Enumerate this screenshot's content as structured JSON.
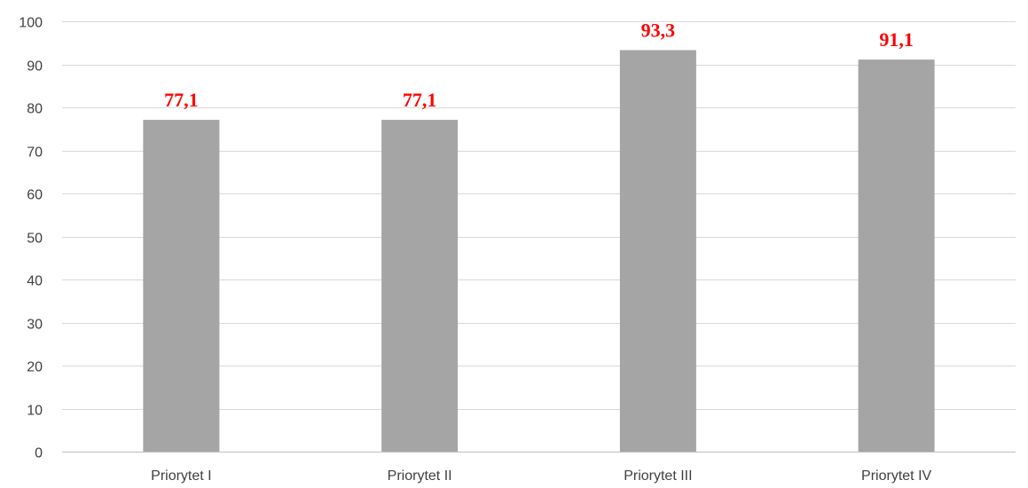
{
  "chart_data": {
    "type": "bar",
    "categories": [
      "Priorytet I",
      "Priorytet II",
      "Priorytet III",
      "Priorytet IV"
    ],
    "values": [
      77.1,
      77.1,
      93.3,
      91.1
    ],
    "data_labels": [
      "77,1",
      "77,1",
      "93,3",
      "91,1"
    ],
    "title": "",
    "xlabel": "",
    "ylabel": "",
    "ylim": [
      0,
      100
    ],
    "yticks": [
      0,
      10,
      20,
      30,
      40,
      50,
      60,
      70,
      80,
      90,
      100
    ],
    "grid": true,
    "legend": "none",
    "colors": {
      "bar": "#a5a5a5",
      "data_label": "#ff0000",
      "grid": "#d9d9d9",
      "axis": "#bfbfbf",
      "text": "#404040"
    }
  }
}
